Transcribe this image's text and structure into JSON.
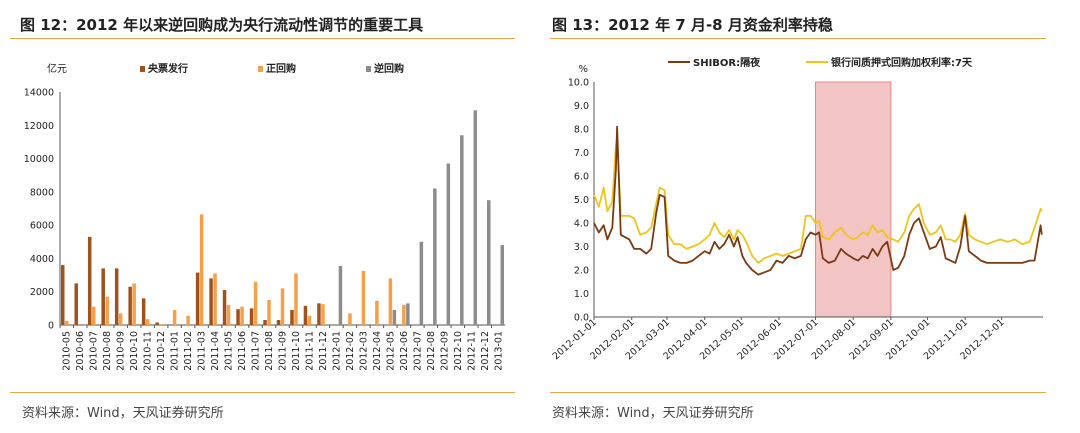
{
  "left": {
    "title": "图 12：2012 年以来逆回购成为央行流动性调节的重要工具",
    "source": "资料来源：Wind，天风证券研究所"
  },
  "right": {
    "title": "图 13：2012 年 7 月-8 月资金利率持稳",
    "source": "资料来源：Wind，天风证券研究所"
  },
  "chart_data": [
    {
      "type": "bar",
      "title": "图 12：2012 年以来逆回购成为央行流动性调节的重要工具",
      "ylabel": "亿元",
      "ylim": [
        0,
        14000
      ],
      "yticks": [
        0,
        2000,
        4000,
        6000,
        8000,
        10000,
        12000,
        14000
      ],
      "legend_position": "top",
      "categories": [
        "2010-05",
        "2010-06",
        "2010-07",
        "2010-08",
        "2010-09",
        "2010-10",
        "2010-11",
        "2010-12",
        "2011-01",
        "2011-02",
        "2011-03",
        "2011-04",
        "2011-05",
        "2011-06",
        "2011-07",
        "2011-08",
        "2011-09",
        "2011-10",
        "2011-11",
        "2011-12",
        "2012-01",
        "2012-02",
        "2012-03",
        "2012-04",
        "2012-05",
        "2012-06",
        "2012-07",
        "2012-08",
        "2012-09",
        "2012-10",
        "2012-11",
        "2012-12",
        "2013-01"
      ],
      "series": [
        {
          "name": "央票发行",
          "color": "#a0521d",
          "values": [
            3600,
            2500,
            5300,
            3400,
            3400,
            2300,
            1600,
            150,
            0,
            0,
            3150,
            2800,
            2100,
            950,
            1000,
            300,
            300,
            900,
            1150,
            1300,
            0,
            0,
            0,
            0,
            0,
            0,
            0,
            0,
            0,
            0,
            0,
            0,
            0
          ]
        },
        {
          "name": "正回购",
          "color": "#f5a04a",
          "values": [
            250,
            0,
            1100,
            1700,
            700,
            2500,
            350,
            50,
            900,
            550,
            6650,
            3100,
            1200,
            1100,
            2600,
            1500,
            2200,
            3100,
            550,
            1250,
            0,
            700,
            3250,
            1450,
            2800,
            1200,
            0,
            0,
            0,
            0,
            0,
            0,
            0
          ]
        },
        {
          "name": "逆回购",
          "color": "#8c8c8c",
          "values": [
            0,
            0,
            0,
            0,
            0,
            0,
            0,
            0,
            0,
            0,
            0,
            0,
            0,
            0,
            0,
            0,
            0,
            0,
            0,
            0,
            3550,
            0,
            0,
            0,
            900,
            1300,
            5000,
            8200,
            9700,
            11400,
            12900,
            7500,
            4800
          ]
        }
      ]
    },
    {
      "type": "line",
      "title": "图 13：2012 年 7 月-8 月资金利率持稳",
      "ylabel": "%",
      "ylim": [
        0,
        10
      ],
      "yticks": [
        0.0,
        1.0,
        2.0,
        3.0,
        4.0,
        5.0,
        6.0,
        7.0,
        8.0,
        9.0,
        10.0
      ],
      "x_ticks": [
        "2012-01-01",
        "2012-02-01",
        "2012-03-01",
        "2012-04-01",
        "2012-05-01",
        "2012-06-01",
        "2012-07-01",
        "2012-08-01",
        "2012-09-01",
        "2012-10-01",
        "2012-11-01",
        "2012-12-01"
      ],
      "highlight": {
        "from": "2012-07-01",
        "to": "2012-09-01",
        "color": "#f2c4c4"
      },
      "legend_position": "top",
      "series": [
        {
          "name": "SHIBOR:隔夜",
          "color": "#7a3b12",
          "points": [
            [
              "2012-01-01",
              4.0
            ],
            [
              "2012-01-05",
              3.6
            ],
            [
              "2012-01-09",
              3.9
            ],
            [
              "2012-01-12",
              3.3
            ],
            [
              "2012-01-16",
              3.8
            ],
            [
              "2012-01-19",
              6.3
            ],
            [
              "2012-01-20",
              8.1
            ],
            [
              "2012-01-23",
              3.5
            ],
            [
              "2012-01-30",
              3.3
            ],
            [
              "2012-02-03",
              2.9
            ],
            [
              "2012-02-08",
              2.9
            ],
            [
              "2012-02-13",
              2.7
            ],
            [
              "2012-02-17",
              2.9
            ],
            [
              "2012-02-21",
              4.4
            ],
            [
              "2012-02-24",
              5.2
            ],
            [
              "2012-02-28",
              5.1
            ],
            [
              "2012-03-02",
              2.6
            ],
            [
              "2012-03-07",
              2.4
            ],
            [
              "2012-03-12",
              2.3
            ],
            [
              "2012-03-17",
              2.3
            ],
            [
              "2012-03-22",
              2.4
            ],
            [
              "2012-03-27",
              2.6
            ],
            [
              "2012-04-01",
              2.8
            ],
            [
              "2012-04-05",
              2.7
            ],
            [
              "2012-04-09",
              3.2
            ],
            [
              "2012-04-13",
              2.9
            ],
            [
              "2012-04-17",
              3.1
            ],
            [
              "2012-04-21",
              3.5
            ],
            [
              "2012-04-25",
              3.0
            ],
            [
              "2012-04-28",
              3.4
            ],
            [
              "2012-05-02",
              2.6
            ],
            [
              "2012-05-05",
              2.3
            ],
            [
              "2012-05-10",
              2.0
            ],
            [
              "2012-05-15",
              1.8
            ],
            [
              "2012-05-20",
              1.9
            ],
            [
              "2012-05-25",
              2.0
            ],
            [
              "2012-05-30",
              2.4
            ],
            [
              "2012-06-04",
              2.3
            ],
            [
              "2012-06-09",
              2.6
            ],
            [
              "2012-06-14",
              2.5
            ],
            [
              "2012-06-19",
              2.6
            ],
            [
              "2012-06-23",
              3.3
            ],
            [
              "2012-06-27",
              3.6
            ],
            [
              "2012-07-01",
              3.5
            ],
            [
              "2012-07-04",
              3.6
            ],
            [
              "2012-07-07",
              2.5
            ],
            [
              "2012-07-12",
              2.3
            ],
            [
              "2012-07-17",
              2.4
            ],
            [
              "2012-07-22",
              2.9
            ],
            [
              "2012-07-26",
              2.7
            ],
            [
              "2012-08-01",
              2.5
            ],
            [
              "2012-08-05",
              2.4
            ],
            [
              "2012-08-09",
              2.6
            ],
            [
              "2012-08-13",
              2.5
            ],
            [
              "2012-08-17",
              2.9
            ],
            [
              "2012-08-21",
              2.6
            ],
            [
              "2012-08-25",
              3.0
            ],
            [
              "2012-08-29",
              3.2
            ],
            [
              "2012-09-03",
              2.0
            ],
            [
              "2012-09-07",
              2.1
            ],
            [
              "2012-09-12",
              2.6
            ],
            [
              "2012-09-16",
              3.5
            ],
            [
              "2012-09-20",
              4.0
            ],
            [
              "2012-09-24",
              4.2
            ],
            [
              "2012-09-28",
              3.6
            ],
            [
              "2012-10-03",
              2.9
            ],
            [
              "2012-10-08",
              3.0
            ],
            [
              "2012-10-12",
              3.4
            ],
            [
              "2012-10-16",
              2.5
            ],
            [
              "2012-10-20",
              2.4
            ],
            [
              "2012-10-24",
              2.3
            ],
            [
              "2012-10-28",
              3.0
            ],
            [
              "2012-11-01",
              4.3
            ],
            [
              "2012-11-04",
              2.8
            ],
            [
              "2012-11-09",
              2.6
            ],
            [
              "2012-11-14",
              2.4
            ],
            [
              "2012-11-19",
              2.3
            ],
            [
              "2012-11-24",
              2.3
            ],
            [
              "2012-11-30",
              2.3
            ],
            [
              "2012-12-06",
              2.3
            ],
            [
              "2012-12-12",
              2.3
            ],
            [
              "2012-12-18",
              2.3
            ],
            [
              "2012-12-24",
              2.4
            ],
            [
              "2012-12-28",
              2.4
            ],
            [
              "2013-01-02",
              3.9
            ],
            [
              "2013-01-03",
              3.5
            ]
          ]
        },
        {
          "name": "银行间质押式回购加权利率:7天",
          "color": "#f0c419",
          "points": [
            [
              "2012-01-01",
              5.2
            ],
            [
              "2012-01-05",
              4.7
            ],
            [
              "2012-01-09",
              5.5
            ],
            [
              "2012-01-12",
              4.5
            ],
            [
              "2012-01-16",
              4.9
            ],
            [
              "2012-01-19",
              7.3
            ],
            [
              "2012-01-20",
              7.7
            ],
            [
              "2012-01-23",
              4.3
            ],
            [
              "2012-01-30",
              4.3
            ],
            [
              "2012-02-03",
              4.2
            ],
            [
              "2012-02-08",
              3.5
            ],
            [
              "2012-02-13",
              3.6
            ],
            [
              "2012-02-17",
              3.8
            ],
            [
              "2012-02-21",
              4.8
            ],
            [
              "2012-02-24",
              5.5
            ],
            [
              "2012-02-28",
              5.4
            ],
            [
              "2012-03-02",
              3.5
            ],
            [
              "2012-03-07",
              3.1
            ],
            [
              "2012-03-12",
              3.1
            ],
            [
              "2012-03-17",
              2.9
            ],
            [
              "2012-03-22",
              3.0
            ],
            [
              "2012-03-27",
              3.1
            ],
            [
              "2012-04-01",
              3.3
            ],
            [
              "2012-04-05",
              3.5
            ],
            [
              "2012-04-09",
              4.0
            ],
            [
              "2012-04-13",
              3.6
            ],
            [
              "2012-04-17",
              3.4
            ],
            [
              "2012-04-21",
              3.7
            ],
            [
              "2012-04-25",
              3.3
            ],
            [
              "2012-04-28",
              3.7
            ],
            [
              "2012-05-02",
              3.5
            ],
            [
              "2012-05-05",
              3.2
            ],
            [
              "2012-05-10",
              2.6
            ],
            [
              "2012-05-15",
              2.3
            ],
            [
              "2012-05-20",
              2.5
            ],
            [
              "2012-05-25",
              2.6
            ],
            [
              "2012-05-30",
              2.7
            ],
            [
              "2012-06-04",
              2.6
            ],
            [
              "2012-06-09",
              2.7
            ],
            [
              "2012-06-14",
              2.8
            ],
            [
              "2012-06-19",
              2.9
            ],
            [
              "2012-06-23",
              4.3
            ],
            [
              "2012-06-27",
              4.3
            ],
            [
              "2012-07-01",
              4.0
            ],
            [
              "2012-07-04",
              4.1
            ],
            [
              "2012-07-07",
              3.4
            ],
            [
              "2012-07-12",
              3.3
            ],
            [
              "2012-07-17",
              3.6
            ],
            [
              "2012-07-22",
              3.8
            ],
            [
              "2012-07-26",
              3.5
            ],
            [
              "2012-08-01",
              3.3
            ],
            [
              "2012-08-05",
              3.4
            ],
            [
              "2012-08-09",
              3.6
            ],
            [
              "2012-08-13",
              3.5
            ],
            [
              "2012-08-17",
              3.9
            ],
            [
              "2012-08-21",
              3.6
            ],
            [
              "2012-08-25",
              3.7
            ],
            [
              "2012-08-29",
              3.4
            ],
            [
              "2012-09-03",
              3.3
            ],
            [
              "2012-09-07",
              3.2
            ],
            [
              "2012-09-12",
              3.6
            ],
            [
              "2012-09-16",
              4.3
            ],
            [
              "2012-09-20",
              4.6
            ],
            [
              "2012-09-24",
              4.8
            ],
            [
              "2012-09-28",
              4.0
            ],
            [
              "2012-10-03",
              3.5
            ],
            [
              "2012-10-08",
              3.6
            ],
            [
              "2012-10-12",
              3.9
            ],
            [
              "2012-10-16",
              3.3
            ],
            [
              "2012-10-20",
              3.3
            ],
            [
              "2012-10-24",
              3.2
            ],
            [
              "2012-10-28",
              3.5
            ],
            [
              "2012-11-01",
              4.4
            ],
            [
              "2012-11-04",
              3.5
            ],
            [
              "2012-11-09",
              3.3
            ],
            [
              "2012-11-14",
              3.2
            ],
            [
              "2012-11-19",
              3.1
            ],
            [
              "2012-11-24",
              3.2
            ],
            [
              "2012-11-30",
              3.3
            ],
            [
              "2012-12-06",
              3.2
            ],
            [
              "2012-12-12",
              3.3
            ],
            [
              "2012-12-18",
              3.1
            ],
            [
              "2012-12-24",
              3.2
            ],
            [
              "2012-12-28",
              3.8
            ],
            [
              "2013-01-02",
              4.6
            ],
            [
              "2013-01-03",
              4.5
            ]
          ]
        }
      ]
    }
  ]
}
